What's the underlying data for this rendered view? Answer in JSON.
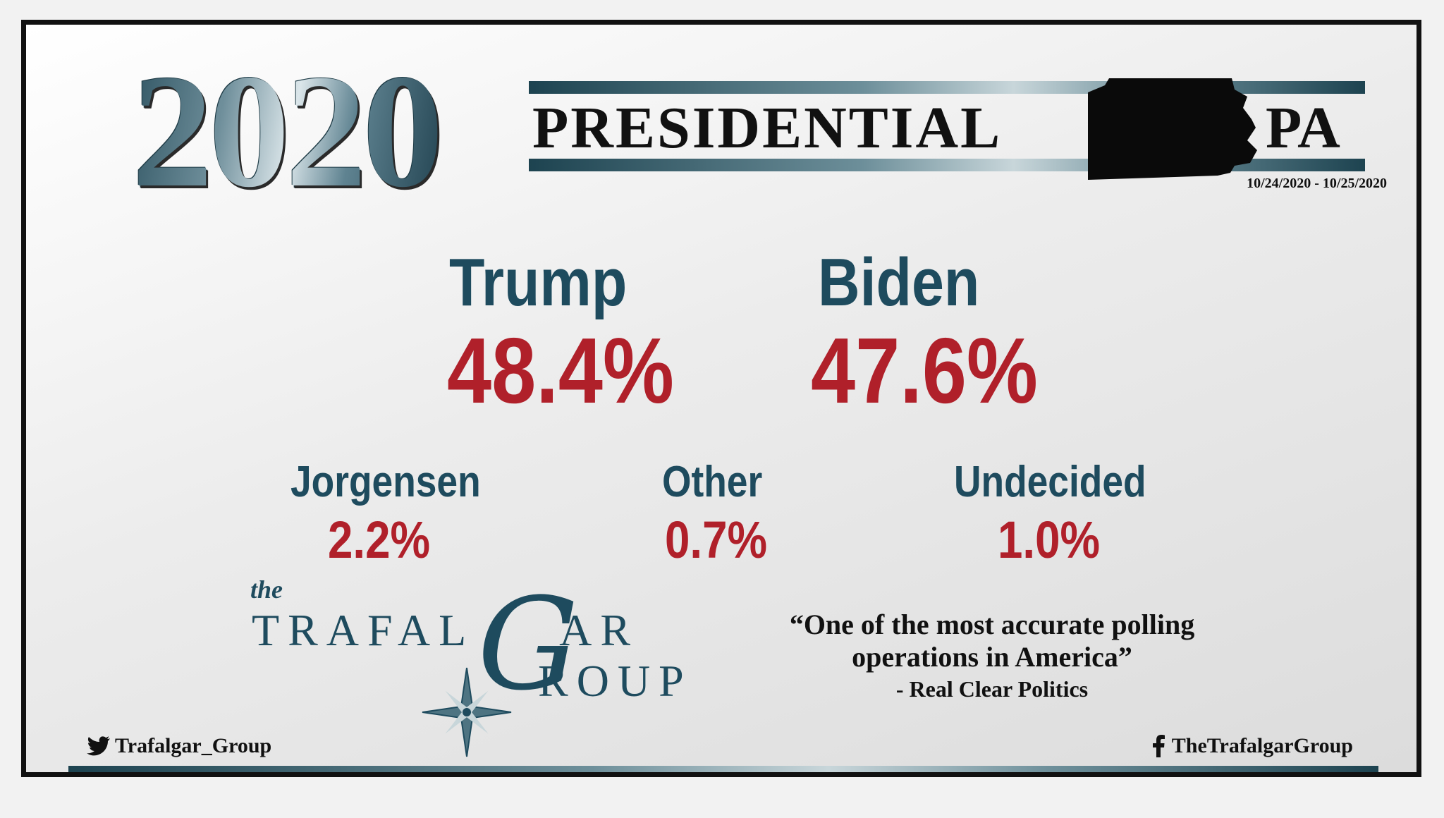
{
  "header": {
    "year": "2020",
    "title": "PRESIDENTIAL",
    "state": "PA",
    "dates": "10/24/2020 - 10/25/2020"
  },
  "candidates": {
    "main": [
      {
        "name": "Trump",
        "value": "48.4%"
      },
      {
        "name": "Biden",
        "value": "47.6%"
      }
    ],
    "minor": [
      {
        "name": "Jorgensen",
        "value": "2.2%"
      },
      {
        "name": "Other",
        "value": "0.7%"
      },
      {
        "name": "Undecided",
        "value": "1.0%"
      }
    ]
  },
  "logo": {
    "the": "the",
    "line1": "TRAFAL",
    "g": "G",
    "ar": "AR",
    "line2": "ROUP"
  },
  "quote": {
    "text": "“One of the most accurate polling operations in America”",
    "source": "- Real Clear Politics"
  },
  "footer": {
    "twitter_handle": "Trafalgar_Group",
    "facebook_handle": "TheTrafalgarGroup",
    "twitter_icon": "twitter-bird-icon",
    "facebook_icon": "facebook-f-icon"
  },
  "colors": {
    "candidate_name": "#1e4b5e",
    "candidate_value": "#b0202a",
    "accent_stripe": "#1d4350"
  }
}
